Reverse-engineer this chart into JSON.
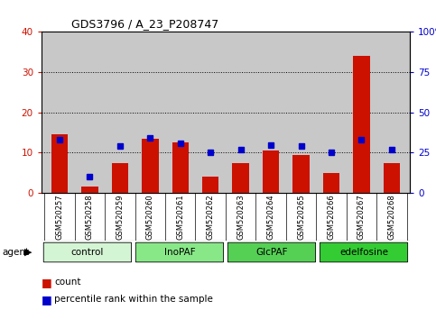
{
  "title": "GDS3796 / A_23_P208747",
  "samples": [
    "GSM520257",
    "GSM520258",
    "GSM520259",
    "GSM520260",
    "GSM520261",
    "GSM520262",
    "GSM520263",
    "GSM520264",
    "GSM520265",
    "GSM520266",
    "GSM520267",
    "GSM520268"
  ],
  "count_values": [
    14.5,
    1.5,
    7.5,
    13.5,
    12.5,
    4.0,
    7.5,
    10.5,
    9.5,
    5.0,
    34.0,
    7.5
  ],
  "percentile_values": [
    33,
    10,
    29,
    34,
    31,
    25,
    27,
    30,
    29,
    25,
    33,
    27
  ],
  "groups": [
    {
      "label": "control",
      "start": 0,
      "end": 3,
      "color": "#d4f5d4"
    },
    {
      "label": "InoPAF",
      "start": 3,
      "end": 6,
      "color": "#88e888"
    },
    {
      "label": "GlcPAF",
      "start": 6,
      "end": 9,
      "color": "#55d055"
    },
    {
      "label": "edelfosine",
      "start": 9,
      "end": 12,
      "color": "#33cc33"
    }
  ],
  "ylim_left": [
    0,
    40
  ],
  "ylim_right": [
    0,
    100
  ],
  "yticks_left": [
    0,
    10,
    20,
    30,
    40
  ],
  "yticks_right": [
    0,
    25,
    50,
    75,
    100
  ],
  "bar_color": "#cc1100",
  "dot_color": "#0000cc",
  "bg_color": "#c8c8c8",
  "title_color": "#000000",
  "left_tick_color": "#cc1100",
  "right_tick_color": "#0000cc",
  "bar_width": 0.55
}
